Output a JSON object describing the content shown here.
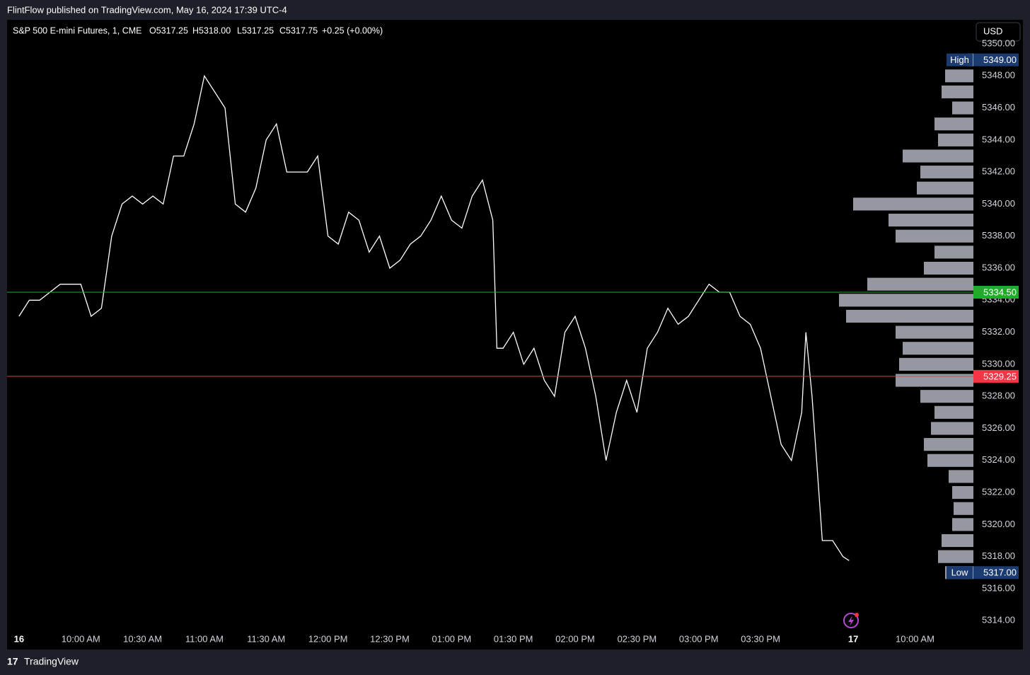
{
  "header": {
    "publisher": "FlintFlow published on TradingView.com, May 16, 2024 17:39 UTC-4"
  },
  "legend": {
    "symbol": "S&P 500 E-mini Futures, 1, CME",
    "open": "O5317.25",
    "high": "H5318.00",
    "low": "L5317.25",
    "close": "C5317.75",
    "change": "+0.25 (+0.00%)"
  },
  "currency_button": "USD",
  "footer": {
    "brand": "TradingView"
  },
  "chart_data": {
    "type": "line",
    "color": "#ffffff",
    "x": [
      0,
      5,
      10,
      15,
      20,
      25,
      30,
      35,
      40,
      45,
      50,
      55,
      60,
      65,
      70,
      75,
      80,
      85,
      90,
      95,
      100,
      105,
      110,
      115,
      120,
      125,
      130,
      135,
      140,
      145,
      150,
      155,
      160,
      165,
      170,
      175,
      180,
      185,
      190,
      195,
      200,
      205,
      210,
      215,
      220,
      225,
      230,
      232,
      235,
      240,
      245,
      250,
      255,
      260,
      265,
      270,
      275,
      280,
      285,
      290,
      295,
      300,
      305,
      310,
      315,
      320,
      325,
      330,
      335,
      340,
      345,
      350,
      355,
      360,
      365,
      370,
      375,
      380,
      382,
      385,
      390,
      395,
      400,
      403
    ],
    "values": [
      5333,
      5334,
      5334,
      5334.5,
      5335,
      5335,
      5335,
      5333,
      5333.5,
      5338,
      5340,
      5340.5,
      5340,
      5340.5,
      5340,
      5343,
      5343,
      5345,
      5348,
      5347,
      5346,
      5340,
      5339.5,
      5341,
      5344,
      5345,
      5342,
      5342,
      5342,
      5343,
      5338,
      5337.5,
      5339.5,
      5339,
      5337,
      5338,
      5336,
      5336.5,
      5337.5,
      5338,
      5339,
      5340.5,
      5339,
      5338.5,
      5340.5,
      5341.5,
      5339,
      5331,
      5331,
      5332,
      5330,
      5331,
      5329,
      5328,
      5332,
      5333,
      5331,
      5328,
      5324,
      5327,
      5329,
      5327,
      5331,
      5332,
      5333.5,
      5332.5,
      5333,
      5334,
      5335,
      5334.5,
      5334.5,
      5333,
      5332.5,
      5331,
      5328,
      5325,
      5324,
      5327,
      5332,
      5328,
      5319,
      5319,
      5318,
      5317.75
    ],
    "xlim": [
      -5.8,
      463
    ],
    "xticks": [
      {
        "value": 0,
        "label": "16"
      },
      {
        "value": 30,
        "label": "10:00 AM"
      },
      {
        "value": 60,
        "label": "10:30 AM"
      },
      {
        "value": 90,
        "label": "11:00 AM"
      },
      {
        "value": 120,
        "label": "11:30 AM"
      },
      {
        "value": 150,
        "label": "12:00 PM"
      },
      {
        "value": 180,
        "label": "12:30 PM"
      },
      {
        "value": 210,
        "label": "01:00 PM"
      },
      {
        "value": 240,
        "label": "01:30 PM"
      },
      {
        "value": 270,
        "label": "02:00 PM"
      },
      {
        "value": 300,
        "label": "02:30 PM"
      },
      {
        "value": 330,
        "label": "03:00 PM"
      },
      {
        "value": 360,
        "label": "03:30 PM"
      },
      {
        "value": 405,
        "label": "17"
      },
      {
        "value": 435,
        "label": "10:00 AM"
      }
    ],
    "ylim": [
      5312.2,
      5351.5
    ],
    "yticks": [
      {
        "value": 5314,
        "label": "5314.00"
      },
      {
        "value": 5316,
        "label": "5316.00"
      },
      {
        "value": 5318,
        "label": "5318.00"
      },
      {
        "value": 5320,
        "label": "5320.00"
      },
      {
        "value": 5322,
        "label": "5322.00"
      },
      {
        "value": 5324,
        "label": "5324.00"
      },
      {
        "value": 5326,
        "label": "5326.00"
      },
      {
        "value": 5328,
        "label": "5328.00"
      },
      {
        "value": 5330,
        "label": "5330.00"
      },
      {
        "value": 5332,
        "label": "5332.00"
      },
      {
        "value": 5334,
        "label": "5334.00"
      },
      {
        "value": 5336,
        "label": "5336.00"
      },
      {
        "value": 5338,
        "label": "5338.00"
      },
      {
        "value": 5340,
        "label": "5340.00"
      },
      {
        "value": 5342,
        "label": "5342.00"
      },
      {
        "value": 5344,
        "label": "5344.00"
      },
      {
        "value": 5346,
        "label": "5346.00"
      },
      {
        "value": 5348,
        "label": "5348.00"
      },
      {
        "value": 5350,
        "label": "5350.00"
      }
    ],
    "price_lines": [
      {
        "value": 5334.5,
        "label": "5334.50",
        "color": "#22ab2b"
      },
      {
        "value": 5329.25,
        "label": "5329.25",
        "color": "#f23645"
      }
    ],
    "extremes": [
      {
        "name": "High",
        "value": 5349,
        "label": "5349.00",
        "color": "#1c3b70"
      },
      {
        "name": "Low",
        "value": 5317,
        "label": "5317.00",
        "color": "#1c3b70"
      }
    ],
    "volume_profile": {
      "color": "#9598a1",
      "prices": [
        5317,
        5318,
        5319,
        5320,
        5321,
        5322,
        5323,
        5324,
        5325,
        5326,
        5327,
        5328,
        5329,
        5330,
        5331,
        5332,
        5333,
        5334,
        5335,
        5336,
        5337,
        5338,
        5339,
        5340,
        5341,
        5342,
        5343,
        5344,
        5345,
        5346,
        5347,
        5348,
        5349
      ],
      "volumes": [
        40,
        50,
        45,
        30,
        28,
        30,
        35,
        65,
        70,
        60,
        55,
        75,
        110,
        105,
        100,
        110,
        180,
        190,
        150,
        70,
        55,
        110,
        120,
        170,
        80,
        75,
        100,
        50,
        55,
        30,
        45,
        40,
        8
      ]
    }
  }
}
